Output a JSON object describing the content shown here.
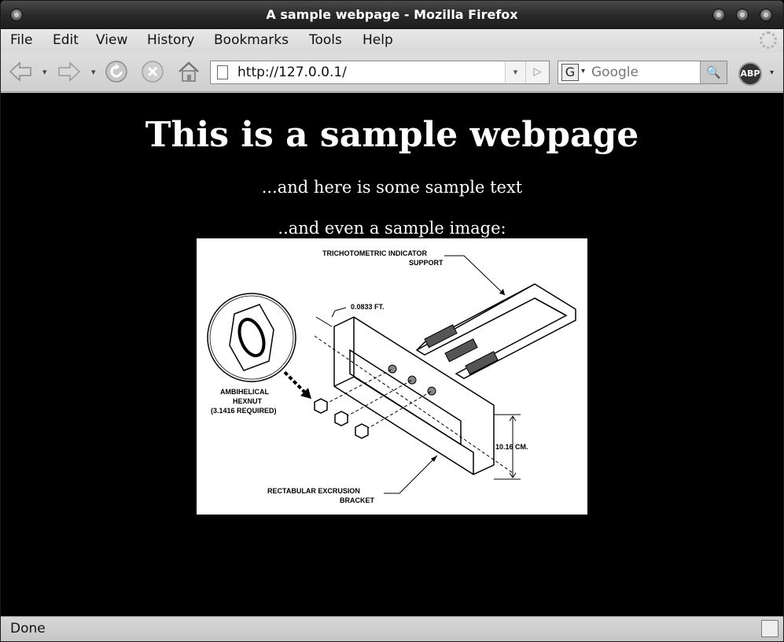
{
  "window": {
    "title": "A sample webpage - Mozilla Firefox"
  },
  "menubar": {
    "items": [
      "File",
      "Edit",
      "View",
      "History",
      "Bookmarks",
      "Tools",
      "Help"
    ]
  },
  "navbar": {
    "url": "http://127.0.0.1/",
    "search_placeholder": "Google",
    "search_engine_glyph": "G",
    "adblock_label": "ABP"
  },
  "page": {
    "heading": "This is a sample webpage",
    "paragraph1": "...and here is some sample text",
    "paragraph2": "..and even a sample image:",
    "image": {
      "labels": {
        "support_line1": "TRICHOTOMETRIC INDICATOR",
        "support_line2": "SUPPORT",
        "dimension_ft": "0.0833 FT.",
        "hexnut_line1": "AMBIHELICAL",
        "hexnut_line2": "HEXNUT",
        "hexnut_line3": "(3.1416 REQUIRED)",
        "dimension_cm": "10.16 CM.",
        "bracket_line1": "RECTABULAR EXCRUSION",
        "bracket_line2": "BRACKET"
      }
    }
  },
  "statusbar": {
    "text": "Done"
  }
}
